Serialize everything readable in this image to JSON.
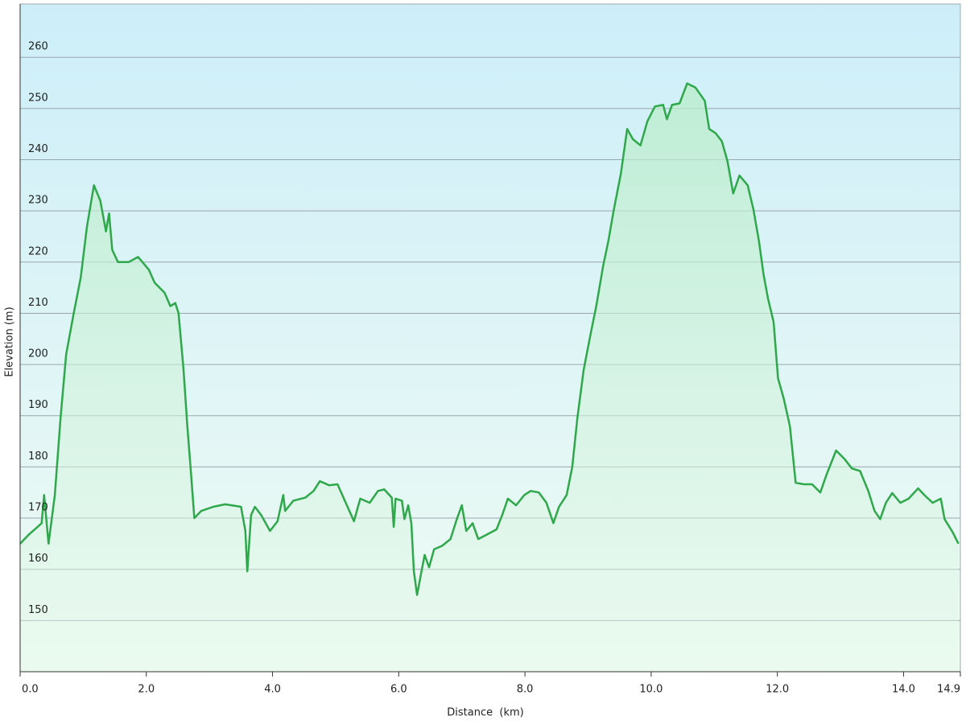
{
  "chart_data": {
    "type": "area",
    "xlabel": "Distance  (km)",
    "ylabel": "Elevation (m)",
    "x": [
      0,
      0.13,
      0.25,
      0.34,
      0.38,
      0.45,
      0.55,
      0.64,
      0.73,
      0.85,
      0.96,
      1.06,
      1.17,
      1.27,
      1.36,
      1.41,
      1.46,
      1.55,
      1.72,
      1.87,
      2.04,
      2.13,
      2.29,
      2.38,
      2.46,
      2.51,
      2.59,
      2.65,
      2.71,
      2.76,
      2.87,
      3.06,
      3.25,
      3.5,
      3.57,
      3.6,
      3.66,
      3.72,
      3.82,
      3.96,
      4.08,
      4.17,
      4.2,
      4.33,
      4.52,
      4.65,
      4.75,
      4.9,
      5.03,
      5.16,
      5.29,
      5.39,
      5.54,
      5.67,
      5.77,
      5.89,
      5.92,
      5.95,
      6.05,
      6.09,
      6.15,
      6.2,
      6.24,
      6.29,
      6.36,
      6.41,
      6.48,
      6.56,
      6.69,
      6.82,
      6.92,
      7.0,
      7.07,
      7.17,
      7.26,
      7.43,
      7.55,
      7.64,
      7.73,
      7.86,
      7.99,
      8.09,
      8.22,
      8.34,
      8.45,
      8.54,
      8.66,
      8.75,
      8.83,
      8.93,
      9.04,
      9.13,
      9.24,
      9.32,
      9.41,
      9.52,
      9.62,
      9.71,
      9.83,
      9.94,
      10.06,
      10.19,
      10.25,
      10.33,
      10.45,
      10.57,
      10.7,
      10.85,
      10.92,
      11.02,
      11.12,
      11.21,
      11.3,
      11.4,
      11.53,
      11.62,
      11.71,
      11.78,
      11.85,
      11.94,
      12.01,
      12.1,
      12.2,
      12.29,
      12.42,
      12.55,
      12.68,
      12.78,
      12.93,
      13.06,
      13.18,
      13.31,
      13.44,
      13.54,
      13.63,
      13.72,
      13.82,
      13.95,
      14.08,
      14.23,
      14.33,
      14.46,
      14.59,
      14.65,
      14.78,
      14.87
    ],
    "values": [
      165,
      166.7,
      168,
      169,
      174.5,
      165,
      174.5,
      189.5,
      202,
      210,
      217,
      227,
      235,
      232,
      226,
      229.5,
      222.4,
      220,
      220,
      221,
      218.5,
      216,
      214,
      211.4,
      212,
      210,
      199,
      188,
      178.5,
      170,
      171.4,
      172.2,
      172.7,
      172.2,
      167.5,
      159.6,
      170.6,
      172.2,
      170.6,
      167.5,
      169.4,
      174.5,
      171.4,
      173.4,
      174,
      175.3,
      177.2,
      176.4,
      176.6,
      173,
      169.4,
      173.8,
      173,
      175.3,
      175.6,
      174,
      168.3,
      173.8,
      173.4,
      169.8,
      172.5,
      169,
      159.6,
      155,
      159.6,
      162.8,
      160.4,
      163.9,
      164.6,
      165.9,
      169.8,
      172.5,
      167.5,
      169,
      165.9,
      167,
      167.8,
      170.6,
      173.8,
      172.5,
      174.5,
      175.3,
      175,
      173,
      169,
      172.2,
      174.5,
      180,
      189.5,
      198.9,
      205.9,
      211.4,
      219.3,
      224,
      230.3,
      237.3,
      246,
      244,
      242.8,
      247.5,
      250.4,
      250.7,
      247.9,
      250.7,
      251,
      254.9,
      254.1,
      251.5,
      246,
      245.2,
      243.6,
      239.7,
      233.4,
      236.9,
      235,
      230.3,
      224,
      217.7,
      213,
      208.3,
      197.3,
      193.4,
      187.9,
      176.9,
      176.6,
      176.6,
      175,
      178.5,
      183.2,
      181.6,
      179.7,
      179.2,
      175.3,
      171.4,
      169.8,
      173,
      174.9,
      173,
      173.8,
      175.8,
      174.5,
      173,
      173.8,
      169.8,
      167.2,
      165
    ],
    "color": "#2ea84a",
    "xlim": [
      0,
      14.9
    ],
    "xticks": [
      {
        "value": 0,
        "label": "0.0"
      },
      {
        "value": 2,
        "label": "2.0"
      },
      {
        "value": 4,
        "label": "4.0"
      },
      {
        "value": 6,
        "label": "6.0"
      },
      {
        "value": 8,
        "label": "8.0"
      },
      {
        "value": 10,
        "label": "10.0"
      },
      {
        "value": 12,
        "label": "12.0"
      },
      {
        "value": 14,
        "label": "14.0"
      },
      14.9
    ],
    "ylim": [
      140,
      270.4
    ],
    "yticks": [
      150,
      160,
      170,
      180,
      190,
      200,
      210,
      220,
      230,
      240,
      250,
      260
    ],
    "grid": true
  }
}
